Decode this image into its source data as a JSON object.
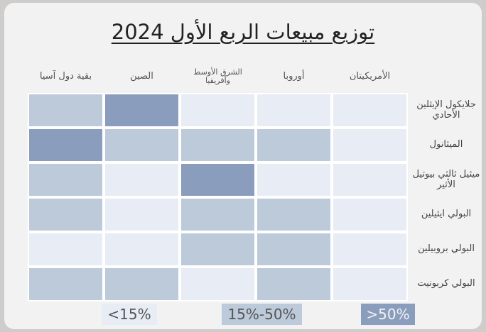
{
  "chart_data": {
    "type": "heatmap",
    "title": "توزيع مبيعات الربع الأول 2024",
    "columns": [
      "الأمريكيتان",
      "أوروبا",
      "الشرق الأوسط وأفريقيا",
      "الصين",
      "بقية دول آسيا"
    ],
    "rows": [
      "جلايكول الإيثلين الأحادي",
      "الميثانول",
      "ميثيل ثالثي بيوتيل الأثير",
      "البولي ايثيلين",
      "البولي بروبيلين",
      "البولي كربونيت"
    ],
    "legend": [
      {
        "label": "<15%",
        "color": "#e8edf5"
      },
      {
        "label": "15%-50%",
        "color": "#bccada"
      },
      {
        "label": ">50%",
        "color": "#8a9dbd"
      }
    ],
    "cells": [
      [
        "<15%",
        "<15%",
        "<15%",
        ">50%",
        "15%-50%"
      ],
      [
        "<15%",
        "15%-50%",
        "15%-50%",
        "15%-50%",
        ">50%"
      ],
      [
        "<15%",
        "<15%",
        ">50%",
        "<15%",
        "15%-50%"
      ],
      [
        "<15%",
        "15%-50%",
        "15%-50%",
        "<15%",
        "15%-50%"
      ],
      [
        "<15%",
        "15%-50%",
        "15%-50%",
        "<15%",
        "<15%"
      ],
      [
        "<15%",
        "15%-50%",
        "<15%",
        "15%-50%",
        "15%-50%"
      ]
    ]
  }
}
